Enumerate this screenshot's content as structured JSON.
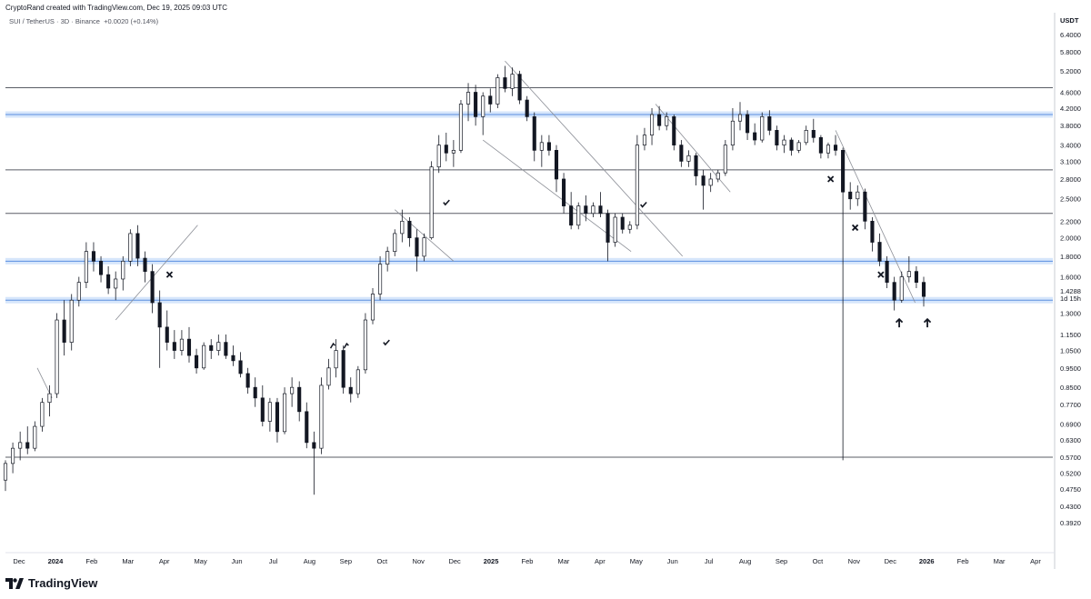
{
  "header": {
    "attribution": "CryptoRand created with TradingView.com, Dec 19, 2025 09:03 UTC"
  },
  "legend": {
    "pair": "SUI / TetherUS",
    "interval": "3D",
    "exchange": "Binance",
    "change": "+0.0020 (+0.14%)"
  },
  "footer": {
    "brand": "TradingView"
  },
  "chart_data": {
    "type": "candlestick",
    "y_axis_unit": "USDT",
    "y_scale": "log",
    "y_ticks": [
      6.4,
      5.8,
      5.2,
      4.6,
      4.2,
      3.8,
      3.4,
      3.1,
      2.8,
      2.5,
      2.2,
      2.0,
      1.8,
      1.6,
      1.3,
      1.15,
      1.05,
      0.95,
      0.85,
      0.77,
      0.69,
      0.63,
      0.57,
      0.52,
      0.475,
      0.43,
      0.392
    ],
    "y_tick_labels": [
      "6.4000",
      "5.8000",
      "5.2000",
      "4.6000",
      "4.2000",
      "3.8000",
      "3.4000",
      "3.1000",
      "2.8000",
      "2.5000",
      "2.2000",
      "2.0000",
      "1.8000",
      "1.6000",
      "1.3000",
      "1.1500",
      "1.0500",
      "0.9500",
      "0.8500",
      "0.7700",
      "0.6900",
      "0.6300",
      "0.5700",
      "0.5200",
      "0.4750",
      "0.4300",
      "0.3920"
    ],
    "price_badge": {
      "value": "1.4288",
      "countdown": "1d 15h"
    },
    "x_tick_labels": [
      "Dec",
      "2024",
      "Feb",
      "Mar",
      "Apr",
      "May",
      "Jun",
      "Jul",
      "Aug",
      "Sep",
      "Oct",
      "Nov",
      "Dec",
      "2025",
      "Feb",
      "Mar",
      "Apr",
      "May",
      "Jun",
      "Jul",
      "Aug",
      "Sep",
      "Oct",
      "Nov",
      "Dec",
      "2026",
      "Feb",
      "Mar",
      "Apr"
    ],
    "horizontal_levels": [
      4.72,
      2.95,
      2.3,
      0.57
    ],
    "highlighted_zones": [
      4.05,
      1.75,
      1.4
    ],
    "markers": [
      "x",
      "check",
      "check",
      "check",
      "arrow-up"
    ],
    "candles": [
      {
        "t": "2023-11-26",
        "o": 0.5,
        "h": 0.56,
        "l": 0.47,
        "c": 0.55
      },
      {
        "t": "2023-12-02",
        "o": 0.55,
        "h": 0.62,
        "l": 0.52,
        "c": 0.6
      },
      {
        "t": "2023-12-08",
        "o": 0.6,
        "h": 0.66,
        "l": 0.56,
        "c": 0.62
      },
      {
        "t": "2023-12-14",
        "o": 0.62,
        "h": 0.68,
        "l": 0.58,
        "c": 0.6
      },
      {
        "t": "2023-12-20",
        "o": 0.6,
        "h": 0.7,
        "l": 0.59,
        "c": 0.68
      },
      {
        "t": "2023-12-26",
        "o": 0.68,
        "h": 0.8,
        "l": 0.66,
        "c": 0.78
      },
      {
        "t": "2024-01-01",
        "o": 0.78,
        "h": 0.86,
        "l": 0.72,
        "c": 0.82
      },
      {
        "t": "2024-01-07",
        "o": 0.82,
        "h": 1.3,
        "l": 0.8,
        "c": 1.25
      },
      {
        "t": "2024-01-13",
        "o": 1.25,
        "h": 1.4,
        "l": 1.02,
        "c": 1.1
      },
      {
        "t": "2024-01-19",
        "o": 1.1,
        "h": 1.45,
        "l": 1.05,
        "c": 1.4
      },
      {
        "t": "2024-01-25",
        "o": 1.4,
        "h": 1.6,
        "l": 1.35,
        "c": 1.55
      },
      {
        "t": "2024-01-31",
        "o": 1.55,
        "h": 1.95,
        "l": 1.5,
        "c": 1.85
      },
      {
        "t": "2024-02-06",
        "o": 1.85,
        "h": 1.95,
        "l": 1.65,
        "c": 1.75
      },
      {
        "t": "2024-02-12",
        "o": 1.75,
        "h": 1.8,
        "l": 1.55,
        "c": 1.62
      },
      {
        "t": "2024-02-18",
        "o": 1.62,
        "h": 1.7,
        "l": 1.45,
        "c": 1.5
      },
      {
        "t": "2024-02-24",
        "o": 1.5,
        "h": 1.65,
        "l": 1.4,
        "c": 1.58
      },
      {
        "t": "2024-03-01",
        "o": 1.58,
        "h": 1.8,
        "l": 1.48,
        "c": 1.75
      },
      {
        "t": "2024-03-07",
        "o": 1.75,
        "h": 2.1,
        "l": 1.7,
        "c": 2.05
      },
      {
        "t": "2024-03-13",
        "o": 2.05,
        "h": 2.15,
        "l": 1.7,
        "c": 1.78
      },
      {
        "t": "2024-03-19",
        "o": 1.78,
        "h": 1.85,
        "l": 1.55,
        "c": 1.65
      },
      {
        "t": "2024-03-25",
        "o": 1.65,
        "h": 1.72,
        "l": 1.3,
        "c": 1.38
      },
      {
        "t": "2024-03-31",
        "o": 1.38,
        "h": 1.48,
        "l": 0.95,
        "c": 1.2
      },
      {
        "t": "2024-04-06",
        "o": 1.2,
        "h": 1.32,
        "l": 1.05,
        "c": 1.1
      },
      {
        "t": "2024-04-12",
        "o": 1.1,
        "h": 1.18,
        "l": 1.0,
        "c": 1.05
      },
      {
        "t": "2024-04-18",
        "o": 1.05,
        "h": 1.18,
        "l": 1.02,
        "c": 1.12
      },
      {
        "t": "2024-04-24",
        "o": 1.12,
        "h": 1.2,
        "l": 0.98,
        "c": 1.02
      },
      {
        "t": "2024-04-30",
        "o": 1.02,
        "h": 1.06,
        "l": 0.92,
        "c": 0.95
      },
      {
        "t": "2024-05-06",
        "o": 0.95,
        "h": 1.1,
        "l": 0.94,
        "c": 1.08
      },
      {
        "t": "2024-05-12",
        "o": 1.08,
        "h": 1.12,
        "l": 1.0,
        "c": 1.05
      },
      {
        "t": "2024-05-18",
        "o": 1.05,
        "h": 1.15,
        "l": 1.02,
        "c": 1.1
      },
      {
        "t": "2024-05-24",
        "o": 1.1,
        "h": 1.15,
        "l": 1.0,
        "c": 1.02
      },
      {
        "t": "2024-05-30",
        "o": 1.02,
        "h": 1.08,
        "l": 0.96,
        "c": 0.99
      },
      {
        "t": "2024-06-05",
        "o": 0.99,
        "h": 1.04,
        "l": 0.9,
        "c": 0.92
      },
      {
        "t": "2024-06-11",
        "o": 0.92,
        "h": 0.95,
        "l": 0.82,
        "c": 0.85
      },
      {
        "t": "2024-06-17",
        "o": 0.85,
        "h": 0.9,
        "l": 0.76,
        "c": 0.8
      },
      {
        "t": "2024-06-23",
        "o": 0.8,
        "h": 0.86,
        "l": 0.68,
        "c": 0.7
      },
      {
        "t": "2024-06-29",
        "o": 0.7,
        "h": 0.8,
        "l": 0.66,
        "c": 0.78
      },
      {
        "t": "2024-07-05",
        "o": 0.78,
        "h": 0.8,
        "l": 0.62,
        "c": 0.66
      },
      {
        "t": "2024-07-11",
        "o": 0.66,
        "h": 0.85,
        "l": 0.65,
        "c": 0.82
      },
      {
        "t": "2024-07-17",
        "o": 0.82,
        "h": 0.9,
        "l": 0.76,
        "c": 0.85
      },
      {
        "t": "2024-07-23",
        "o": 0.85,
        "h": 0.88,
        "l": 0.7,
        "c": 0.74
      },
      {
        "t": "2024-07-29",
        "o": 0.74,
        "h": 0.78,
        "l": 0.6,
        "c": 0.62
      },
      {
        "t": "2024-08-04",
        "o": 0.62,
        "h": 0.66,
        "l": 0.46,
        "c": 0.6
      },
      {
        "t": "2024-08-10",
        "o": 0.6,
        "h": 0.9,
        "l": 0.58,
        "c": 0.86
      },
      {
        "t": "2024-08-16",
        "o": 0.86,
        "h": 1.0,
        "l": 0.84,
        "c": 0.95
      },
      {
        "t": "2024-08-22",
        "o": 0.95,
        "h": 1.12,
        "l": 0.9,
        "c": 1.05
      },
      {
        "t": "2024-08-28",
        "o": 1.05,
        "h": 1.08,
        "l": 0.82,
        "c": 0.85
      },
      {
        "t": "2024-09-03",
        "o": 0.85,
        "h": 0.9,
        "l": 0.78,
        "c": 0.82
      },
      {
        "t": "2024-09-09",
        "o": 0.82,
        "h": 0.96,
        "l": 0.8,
        "c": 0.94
      },
      {
        "t": "2024-09-15",
        "o": 0.94,
        "h": 1.3,
        "l": 0.92,
        "c": 1.25
      },
      {
        "t": "2024-09-21",
        "o": 1.25,
        "h": 1.5,
        "l": 1.22,
        "c": 1.45
      },
      {
        "t": "2024-09-27",
        "o": 1.45,
        "h": 1.8,
        "l": 1.4,
        "c": 1.72
      },
      {
        "t": "2024-10-03",
        "o": 1.72,
        "h": 1.9,
        "l": 1.65,
        "c": 1.85
      },
      {
        "t": "2024-10-09",
        "o": 1.85,
        "h": 2.1,
        "l": 1.8,
        "c": 2.05
      },
      {
        "t": "2024-10-15",
        "o": 2.05,
        "h": 2.35,
        "l": 1.95,
        "c": 2.2
      },
      {
        "t": "2024-10-21",
        "o": 2.2,
        "h": 2.25,
        "l": 1.9,
        "c": 2.0
      },
      {
        "t": "2024-10-27",
        "o": 2.0,
        "h": 2.1,
        "l": 1.65,
        "c": 1.8
      },
      {
        "t": "2024-11-02",
        "o": 1.8,
        "h": 2.05,
        "l": 1.75,
        "c": 2.0
      },
      {
        "t": "2024-11-08",
        "o": 2.0,
        "h": 3.1,
        "l": 1.98,
        "c": 3.0
      },
      {
        "t": "2024-11-14",
        "o": 3.0,
        "h": 3.6,
        "l": 2.9,
        "c": 3.4
      },
      {
        "t": "2024-11-20",
        "o": 3.4,
        "h": 3.65,
        "l": 3.1,
        "c": 3.25
      },
      {
        "t": "2024-11-26",
        "o": 3.25,
        "h": 3.5,
        "l": 3.0,
        "c": 3.3
      },
      {
        "t": "2024-12-02",
        "o": 3.3,
        "h": 4.4,
        "l": 3.25,
        "c": 4.3
      },
      {
        "t": "2024-12-08",
        "o": 4.3,
        "h": 4.85,
        "l": 3.9,
        "c": 4.6
      },
      {
        "t": "2024-12-14",
        "o": 4.6,
        "h": 4.8,
        "l": 3.8,
        "c": 4.0
      },
      {
        "t": "2024-12-20",
        "o": 4.0,
        "h": 4.6,
        "l": 3.6,
        "c": 4.5
      },
      {
        "t": "2024-12-26",
        "o": 4.5,
        "h": 4.7,
        "l": 4.1,
        "c": 4.3
      },
      {
        "t": "2025-01-01",
        "o": 4.3,
        "h": 5.1,
        "l": 4.2,
        "c": 5.0
      },
      {
        "t": "2025-01-07",
        "o": 5.0,
        "h": 5.35,
        "l": 4.6,
        "c": 4.7
      },
      {
        "t": "2025-01-13",
        "o": 4.7,
        "h": 5.3,
        "l": 4.5,
        "c": 5.1
      },
      {
        "t": "2025-01-19",
        "o": 5.1,
        "h": 5.2,
        "l": 4.3,
        "c": 4.4
      },
      {
        "t": "2025-01-25",
        "o": 4.4,
        "h": 4.5,
        "l": 3.9,
        "c": 4.0
      },
      {
        "t": "2025-01-31",
        "o": 4.0,
        "h": 4.1,
        "l": 3.1,
        "c": 3.3
      },
      {
        "t": "2025-02-06",
        "o": 3.3,
        "h": 3.6,
        "l": 3.0,
        "c": 3.45
      },
      {
        "t": "2025-02-12",
        "o": 3.45,
        "h": 3.6,
        "l": 3.2,
        "c": 3.3
      },
      {
        "t": "2025-02-18",
        "o": 3.3,
        "h": 3.4,
        "l": 2.6,
        "c": 2.8
      },
      {
        "t": "2025-02-24",
        "o": 2.8,
        "h": 2.9,
        "l": 2.3,
        "c": 2.4
      },
      {
        "t": "2025-03-02",
        "o": 2.4,
        "h": 2.6,
        "l": 2.1,
        "c": 2.15
      },
      {
        "t": "2025-03-08",
        "o": 2.15,
        "h": 2.45,
        "l": 2.1,
        "c": 2.4
      },
      {
        "t": "2025-03-14",
        "o": 2.4,
        "h": 2.55,
        "l": 2.2,
        "c": 2.3
      },
      {
        "t": "2025-03-20",
        "o": 2.3,
        "h": 2.45,
        "l": 2.25,
        "c": 2.4
      },
      {
        "t": "2025-03-26",
        "o": 2.4,
        "h": 2.6,
        "l": 2.25,
        "c": 2.3
      },
      {
        "t": "2025-04-01",
        "o": 2.3,
        "h": 2.35,
        "l": 1.75,
        "c": 1.95
      },
      {
        "t": "2025-04-07",
        "o": 1.95,
        "h": 2.3,
        "l": 1.9,
        "c": 2.25
      },
      {
        "t": "2025-04-13",
        "o": 2.25,
        "h": 2.3,
        "l": 2.05,
        "c": 2.1
      },
      {
        "t": "2025-04-19",
        "o": 2.1,
        "h": 2.2,
        "l": 2.05,
        "c": 2.15
      },
      {
        "t": "2025-04-25",
        "o": 2.15,
        "h": 3.6,
        "l": 2.1,
        "c": 3.4
      },
      {
        "t": "2025-05-01",
        "o": 3.4,
        "h": 3.75,
        "l": 3.3,
        "c": 3.6
      },
      {
        "t": "2025-05-07",
        "o": 3.6,
        "h": 4.2,
        "l": 3.4,
        "c": 4.05
      },
      {
        "t": "2025-05-13",
        "o": 4.05,
        "h": 4.25,
        "l": 3.7,
        "c": 3.8
      },
      {
        "t": "2025-05-19",
        "o": 3.8,
        "h": 4.1,
        "l": 3.7,
        "c": 4.0
      },
      {
        "t": "2025-05-25",
        "o": 4.0,
        "h": 4.05,
        "l": 3.3,
        "c": 3.4
      },
      {
        "t": "2025-05-31",
        "o": 3.4,
        "h": 3.5,
        "l": 3.0,
        "c": 3.1
      },
      {
        "t": "2025-06-06",
        "o": 3.1,
        "h": 3.3,
        "l": 3.0,
        "c": 3.2
      },
      {
        "t": "2025-06-12",
        "o": 3.2,
        "h": 3.25,
        "l": 2.7,
        "c": 2.85
      },
      {
        "t": "2025-06-18",
        "o": 2.85,
        "h": 2.95,
        "l": 2.35,
        "c": 2.7
      },
      {
        "t": "2025-06-24",
        "o": 2.7,
        "h": 2.9,
        "l": 2.6,
        "c": 2.8
      },
      {
        "t": "2025-06-30",
        "o": 2.8,
        "h": 2.95,
        "l": 2.75,
        "c": 2.9
      },
      {
        "t": "2025-07-06",
        "o": 2.9,
        "h": 3.5,
        "l": 2.85,
        "c": 3.4
      },
      {
        "t": "2025-07-12",
        "o": 3.4,
        "h": 4.2,
        "l": 3.3,
        "c": 3.9
      },
      {
        "t": "2025-07-18",
        "o": 3.9,
        "h": 4.35,
        "l": 3.7,
        "c": 4.05
      },
      {
        "t": "2025-07-24",
        "o": 4.05,
        "h": 4.15,
        "l": 3.5,
        "c": 3.65
      },
      {
        "t": "2025-07-30",
        "o": 3.65,
        "h": 3.85,
        "l": 3.4,
        "c": 3.5
      },
      {
        "t": "2025-08-05",
        "o": 3.5,
        "h": 4.1,
        "l": 3.45,
        "c": 4.0
      },
      {
        "t": "2025-08-11",
        "o": 4.0,
        "h": 4.15,
        "l": 3.6,
        "c": 3.7
      },
      {
        "t": "2025-08-17",
        "o": 3.7,
        "h": 3.8,
        "l": 3.3,
        "c": 3.4
      },
      {
        "t": "2025-08-23",
        "o": 3.4,
        "h": 3.6,
        "l": 3.25,
        "c": 3.5
      },
      {
        "t": "2025-08-29",
        "o": 3.5,
        "h": 3.55,
        "l": 3.2,
        "c": 3.3
      },
      {
        "t": "2025-09-04",
        "o": 3.3,
        "h": 3.5,
        "l": 3.25,
        "c": 3.45
      },
      {
        "t": "2025-09-10",
        "o": 3.45,
        "h": 3.8,
        "l": 3.4,
        "c": 3.7
      },
      {
        "t": "2025-09-16",
        "o": 3.7,
        "h": 3.95,
        "l": 3.45,
        "c": 3.55
      },
      {
        "t": "2025-09-22",
        "o": 3.55,
        "h": 3.6,
        "l": 3.15,
        "c": 3.25
      },
      {
        "t": "2025-09-28",
        "o": 3.25,
        "h": 3.45,
        "l": 3.15,
        "c": 3.4
      },
      {
        "t": "2025-10-04",
        "o": 3.4,
        "h": 3.6,
        "l": 3.2,
        "c": 3.3
      },
      {
        "t": "2025-10-10",
        "o": 3.3,
        "h": 3.35,
        "l": 0.56,
        "c": 2.6
      },
      {
        "t": "2025-10-16",
        "o": 2.6,
        "h": 2.75,
        "l": 2.35,
        "c": 2.5
      },
      {
        "t": "2025-10-22",
        "o": 2.5,
        "h": 2.7,
        "l": 2.4,
        "c": 2.6
      },
      {
        "t": "2025-10-28",
        "o": 2.6,
        "h": 2.65,
        "l": 2.1,
        "c": 2.2
      },
      {
        "t": "2025-11-03",
        "o": 2.2,
        "h": 2.25,
        "l": 1.85,
        "c": 1.95
      },
      {
        "t": "2025-11-09",
        "o": 1.95,
        "h": 2.05,
        "l": 1.7,
        "c": 1.75
      },
      {
        "t": "2025-11-15",
        "o": 1.75,
        "h": 1.8,
        "l": 1.5,
        "c": 1.55
      },
      {
        "t": "2025-11-21",
        "o": 1.55,
        "h": 1.6,
        "l": 1.32,
        "c": 1.4
      },
      {
        "t": "2025-11-27",
        "o": 1.4,
        "h": 1.65,
        "l": 1.38,
        "c": 1.6
      },
      {
        "t": "2025-12-03",
        "o": 1.6,
        "h": 1.8,
        "l": 1.55,
        "c": 1.65
      },
      {
        "t": "2025-12-09",
        "o": 1.65,
        "h": 1.7,
        "l": 1.5,
        "c": 1.55
      },
      {
        "t": "2025-12-15",
        "o": 1.55,
        "h": 1.6,
        "l": 1.35,
        "c": 1.43
      }
    ]
  }
}
